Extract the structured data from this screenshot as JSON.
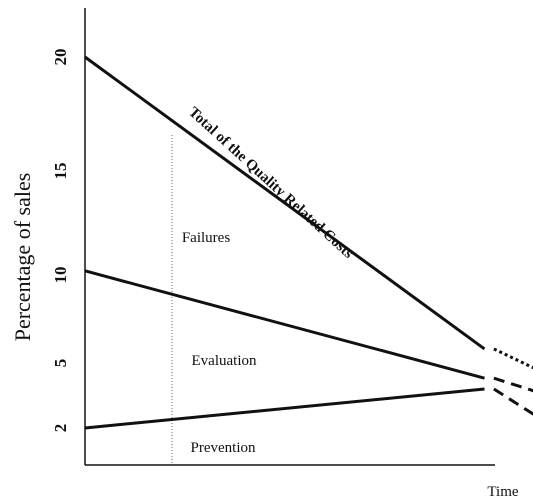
{
  "chart_data": {
    "type": "line",
    "title": "",
    "xlabel": "Time",
    "ylabel": "Percentage of sales",
    "ylim": [
      2,
      20
    ],
    "y_ticks": [
      20,
      15,
      10,
      5,
      2
    ],
    "grid": false,
    "legend": "none",
    "series": [
      {
        "name": "Total of the Quality Related Costs",
        "x": [
          0,
          0.85
        ],
        "values": [
          20,
          5.8
        ],
        "projection": {
          "x": [
            0.87,
            1.0
          ],
          "values": [
            5.8,
            4.3
          ],
          "style": "dotted"
        }
      },
      {
        "name": "",
        "x": [
          0,
          0.85
        ],
        "values": [
          10.2,
          4.3
        ],
        "projection": {
          "x": [
            0.87,
            1.0
          ],
          "values": [
            4.3,
            3.4
          ],
          "style": "dashed"
        }
      },
      {
        "name": "",
        "x": [
          0,
          0.85
        ],
        "values": [
          2.0,
          3.8
        ],
        "projection": {
          "x": [
            0.87,
            1.0
          ],
          "values": [
            3.8,
            2.0
          ],
          "style": "dashed"
        }
      }
    ],
    "regions": [
      "Failures",
      "Evaluation",
      "Prevention"
    ],
    "reference_line_x": 0.2
  }
}
